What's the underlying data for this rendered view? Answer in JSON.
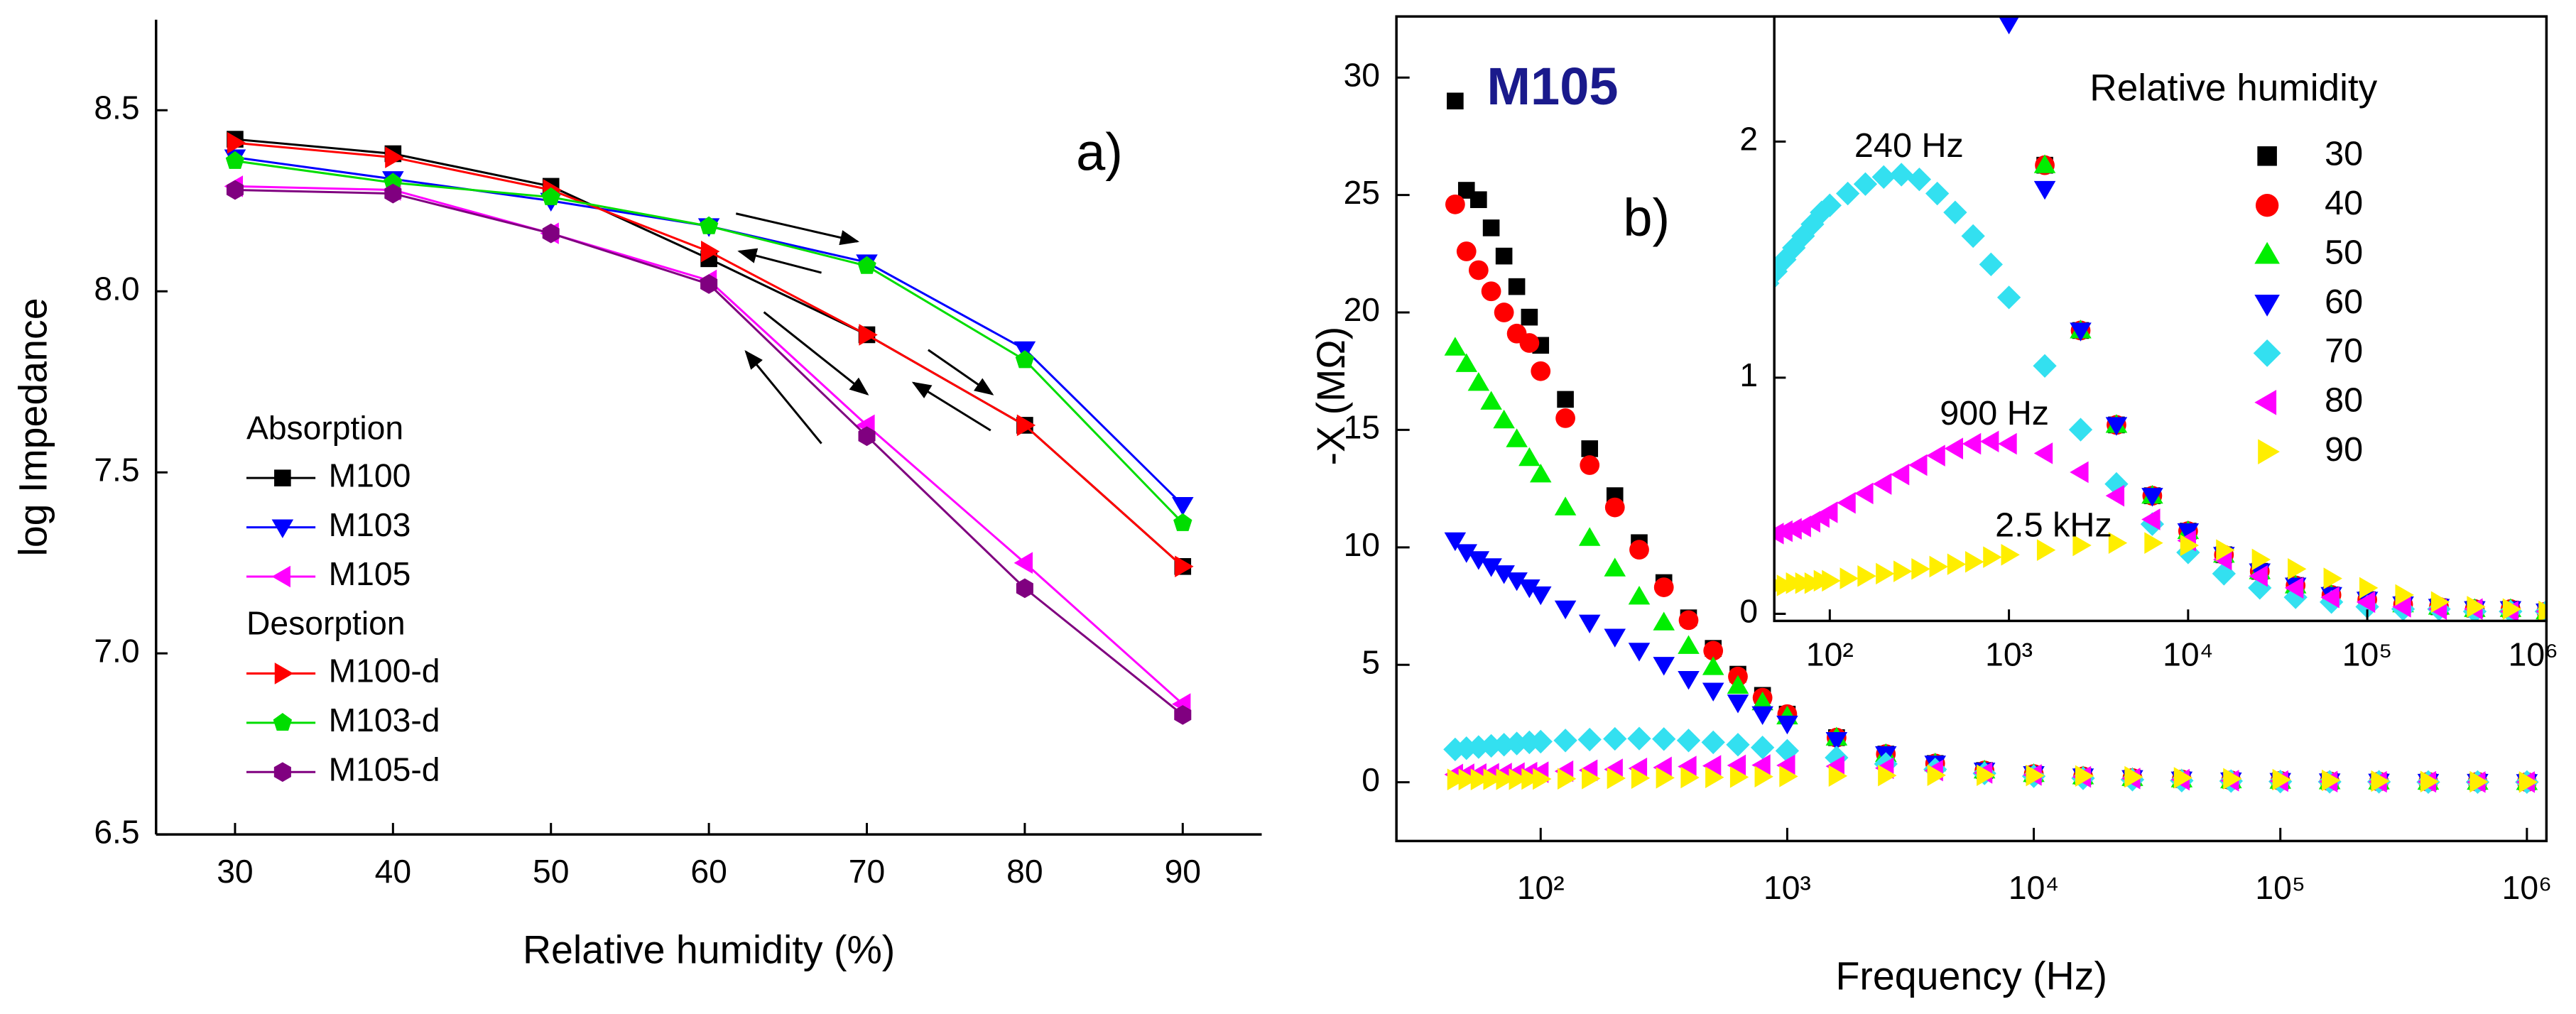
{
  "chart_data": [
    {
      "type": "line",
      "annotation": "a)",
      "xlabel": "Relative humidity (%)",
      "ylabel": "log Impedance",
      "x": [
        30,
        40,
        50,
        60,
        70,
        80,
        90
      ],
      "xlim": [
        25,
        95
      ],
      "xticks": [
        30,
        40,
        50,
        60,
        70,
        80,
        90
      ],
      "ylim": [
        6.5,
        8.75
      ],
      "yticks": [
        6.5,
        {
          "value": 7.0,
          "label": "7.0"
        },
        7.5,
        {
          "value": 8.0,
          "label": "8.0"
        },
        8.5
      ],
      "legend_groups": [
        {
          "title": "Absorption",
          "series": [
            0,
            1,
            2
          ]
        },
        {
          "title": "Desorption",
          "series": [
            3,
            4,
            5
          ]
        }
      ],
      "series": [
        {
          "name": "M100",
          "color": "#000000",
          "marker": "square",
          "values": [
            8.42,
            8.38,
            8.29,
            8.09,
            7.88,
            7.63,
            7.24
          ]
        },
        {
          "name": "M103",
          "color": "#0000ff",
          "marker": "triangle-down",
          "values": [
            8.37,
            8.31,
            8.25,
            8.18,
            8.08,
            7.84,
            7.41
          ]
        },
        {
          "name": "M105",
          "color": "#ff00ff",
          "marker": "triangle-left",
          "values": [
            8.29,
            8.28,
            8.16,
            8.03,
            7.63,
            7.25,
            6.86
          ]
        },
        {
          "name": "M100-d",
          "color": "#ff0000",
          "marker": "triangle-right",
          "values": [
            8.41,
            8.37,
            8.28,
            8.11,
            7.88,
            7.63,
            7.24
          ]
        },
        {
          "name": "M103-d",
          "color": "#00dd00",
          "marker": "pentagon",
          "values": [
            8.36,
            8.3,
            8.26,
            8.18,
            8.07,
            7.81,
            7.36
          ]
        },
        {
          "name": "M105-d",
          "color": "#800080",
          "marker": "hexagon",
          "values": [
            8.28,
            8.27,
            8.16,
            8.02,
            7.6,
            7.18,
            6.83
          ]
        }
      ]
    },
    {
      "type": "scatter",
      "title": "M105",
      "annotation": "b)",
      "xlabel": "Frequency (Hz)",
      "ylabel": "-X (MΩ)",
      "xscale": "log",
      "legend_title": "Relative humidity",
      "x": [
        45,
        50,
        56,
        63,
        71,
        80,
        90,
        100,
        126,
        158,
        200,
        251,
        316,
        398,
        501,
        631,
        794,
        1000,
        1585,
        2512,
        3981,
        6310,
        10000,
        15850,
        25120,
        39810,
        63100,
        100000,
        158500,
        251200,
        398100,
        631000,
        1000000
      ],
      "xlim": [
        26,
        1200000
      ],
      "xticks": [
        {
          "value": 100,
          "label": "10²"
        },
        {
          "value": 1000,
          "label": "10³"
        },
        {
          "value": 10000,
          "label": "10⁴"
        },
        {
          "value": 100000,
          "label": "10⁵"
        },
        {
          "value": 1000000,
          "label": "10⁶"
        }
      ],
      "ylim": [
        -2.5,
        32.6
      ],
      "yticks": [
        0,
        5,
        10,
        15,
        20,
        25,
        30
      ],
      "inset": {
        "xlim": [
          49,
          1000000
        ],
        "xticks": [
          {
            "value": 100,
            "label": "10²"
          },
          {
            "value": 1000,
            "label": "10³"
          },
          {
            "value": 10000,
            "label": "10⁴"
          },
          {
            "value": 100000,
            "label": "10⁵"
          },
          {
            "value": 1000000,
            "label": "10⁶"
          }
        ],
        "ylim": [
          -0.03,
          2.53
        ],
        "yticks": [
          0,
          1,
          2
        ],
        "annotations": [
          "240 Hz",
          "900 Hz",
          "2.5 kHz"
        ]
      },
      "series": [
        {
          "name": "30",
          "color": "#000000",
          "marker": "square",
          "values": [
            29.0,
            25.2,
            24.8,
            23.6,
            22.4,
            21.1,
            19.8,
            18.6,
            16.3,
            14.2,
            12.2,
            10.2,
            8.5,
            7.0,
            5.7,
            4.6,
            3.7,
            2.9,
            1.9,
            1.2,
            0.8,
            0.5,
            0.35,
            0.25,
            0.18,
            0.12,
            0.08,
            0.06,
            0.04,
            0.03,
            0.02,
            0.02,
            0.01
          ]
        },
        {
          "name": "40",
          "color": "#ff0000",
          "marker": "circle",
          "values": [
            24.6,
            22.6,
            21.8,
            20.9,
            20.0,
            19.1,
            18.7,
            17.5,
            15.5,
            13.5,
            11.7,
            9.9,
            8.3,
            6.9,
            5.6,
            4.5,
            3.6,
            2.9,
            1.9,
            1.2,
            0.8,
            0.5,
            0.35,
            0.25,
            0.18,
            0.12,
            0.08,
            0.06,
            0.04,
            0.03,
            0.02,
            0.02,
            0.01
          ]
        },
        {
          "name": "50",
          "color": "#00ee00",
          "marker": "triangle-up",
          "values": [
            18.5,
            17.8,
            17.0,
            16.2,
            15.4,
            14.6,
            13.8,
            13.1,
            11.7,
            10.4,
            9.1,
            7.9,
            6.8,
            5.8,
            4.9,
            4.1,
            3.4,
            2.8,
            1.9,
            1.2,
            0.8,
            0.5,
            0.35,
            0.25,
            0.18,
            0.12,
            0.08,
            0.06,
            0.04,
            0.03,
            0.02,
            0.02,
            0.01
          ]
        },
        {
          "name": "60",
          "color": "#0000ff",
          "marker": "triangle-down",
          "values": [
            10.3,
            9.8,
            9.5,
            9.2,
            8.9,
            8.6,
            8.3,
            8.0,
            7.4,
            6.8,
            6.2,
            5.6,
            5.0,
            4.4,
            3.9,
            3.4,
            2.9,
            2.5,
            1.8,
            1.2,
            0.8,
            0.5,
            0.35,
            0.25,
            0.18,
            0.12,
            0.08,
            0.06,
            0.04,
            0.03,
            0.02,
            0.02,
            0.01
          ]
        },
        {
          "name": "70",
          "color": "#33e0f0",
          "marker": "diamond",
          "values": [
            1.4,
            1.45,
            1.5,
            1.55,
            1.6,
            1.65,
            1.7,
            1.73,
            1.78,
            1.82,
            1.85,
            1.86,
            1.84,
            1.78,
            1.7,
            1.6,
            1.48,
            1.34,
            1.05,
            0.78,
            0.55,
            0.38,
            0.26,
            0.17,
            0.11,
            0.07,
            0.05,
            0.03,
            0.02,
            0.02,
            0.01,
            0.01,
            0.01
          ]
        },
        {
          "name": "80",
          "color": "#ff00ff",
          "marker": "triangle-left",
          "values": [
            0.33,
            0.34,
            0.35,
            0.36,
            0.37,
            0.39,
            0.41,
            0.43,
            0.47,
            0.51,
            0.55,
            0.59,
            0.63,
            0.67,
            0.7,
            0.72,
            0.73,
            0.72,
            0.68,
            0.6,
            0.5,
            0.4,
            0.31,
            0.23,
            0.16,
            0.11,
            0.07,
            0.05,
            0.03,
            0.02,
            0.02,
            0.01,
            0.01
          ]
        },
        {
          "name": "90",
          "color": "#ffee00",
          "marker": "triangle-right",
          "values": [
            0.12,
            0.12,
            0.12,
            0.13,
            0.13,
            0.13,
            0.14,
            0.14,
            0.15,
            0.16,
            0.17,
            0.18,
            0.19,
            0.2,
            0.21,
            0.22,
            0.24,
            0.25,
            0.27,
            0.29,
            0.3,
            0.3,
            0.29,
            0.27,
            0.23,
            0.19,
            0.15,
            0.11,
            0.08,
            0.05,
            0.03,
            0.02,
            0.01
          ]
        }
      ]
    }
  ]
}
